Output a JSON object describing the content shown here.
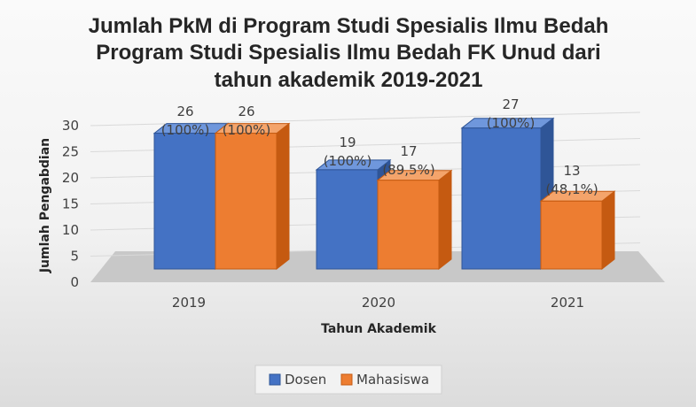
{
  "chart_data": {
    "type": "bar",
    "title_lines": [
      "Jumlah PkM di Program Studi Spesialis Ilmu Bedah",
      "Program Studi Spesialis Ilmu Bedah  FK Unud dari",
      "tahun akademik 2019-2021"
    ],
    "xlabel": "Tahun Akademik",
    "ylabel": "Jumlah Pengabdian",
    "categories": [
      "2019",
      "2020",
      "2021"
    ],
    "ylim": [
      0,
      30
    ],
    "yticks": [
      "0",
      "5",
      "10",
      "15",
      "20",
      "25",
      "30"
    ],
    "series": [
      {
        "name": "Dosen",
        "values": [
          26,
          19,
          27
        ],
        "labels": [
          [
            "26",
            "(100%)"
          ],
          [
            "19",
            "(100%)"
          ],
          [
            "27",
            "(100%)"
          ]
        ]
      },
      {
        "name": "Mahasiswa",
        "values": [
          26,
          17,
          13
        ],
        "labels": [
          [
            "26",
            "(100%)"
          ],
          [
            "17",
            "(89,5%)"
          ],
          [
            "13",
            "(48,1%)"
          ]
        ]
      }
    ],
    "gridlines": true,
    "style": "3d-clustered-column",
    "legend_position": "bottom"
  },
  "colors": {
    "dosen_front": "#4472c4",
    "dosen_top": "#6f97dc",
    "dosen_side": "#2f5597",
    "mahasiswa_front": "#ed7d31",
    "mahasiswa_top": "#f4a46b",
    "mahasiswa_side": "#c55a11",
    "floor": "#c8c8c8",
    "grid": "#d9d9d9"
  }
}
